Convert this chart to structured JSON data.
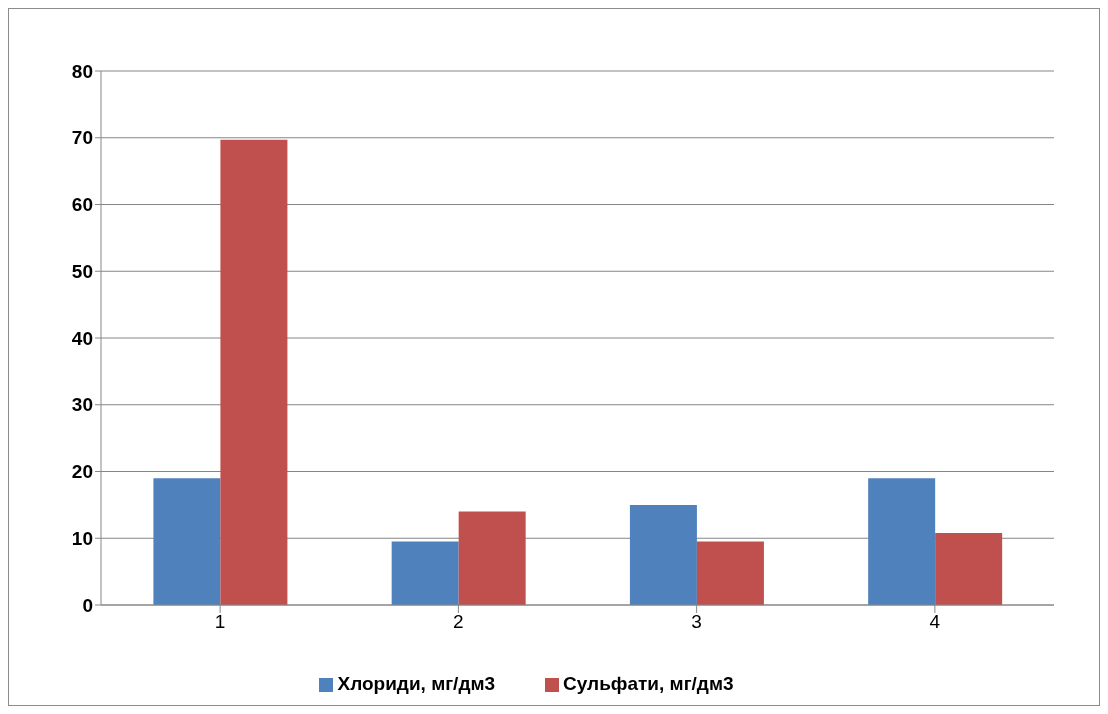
{
  "chart_data": {
    "type": "bar",
    "categories": [
      "1",
      "2",
      "3",
      "4"
    ],
    "series": [
      {
        "name": "Хлориди, мг/дм3",
        "color": "#4f81bd",
        "values": [
          19,
          9.5,
          15,
          19
        ]
      },
      {
        "name": "Сульфати, мг/дм3",
        "color": "#c0504d",
        "values": [
          69.7,
          14,
          9.5,
          10.8
        ]
      }
    ],
    "ylim": [
      0,
      80
    ],
    "yticks": [
      0,
      10,
      20,
      30,
      40,
      50,
      60,
      70,
      80
    ],
    "grid": "y",
    "legend": "bottom"
  }
}
